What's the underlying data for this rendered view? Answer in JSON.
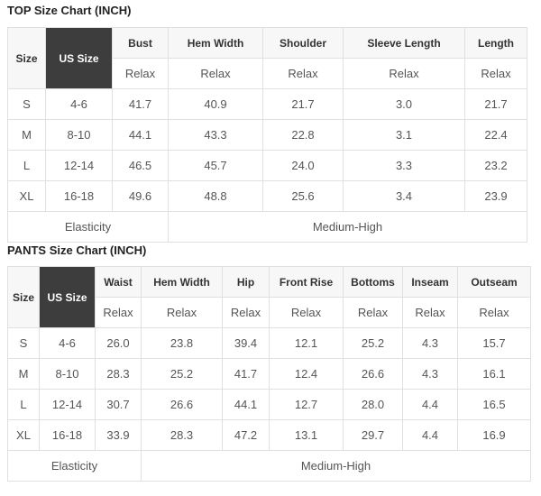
{
  "top": {
    "title": "TOP Size Chart (INCH)",
    "size_label": "Size",
    "us_size_label": "US Size",
    "columns": [
      "Bust",
      "Hem Width",
      "Shoulder",
      "Sleeve Length",
      "Length"
    ],
    "sub": "Relax",
    "rows": [
      [
        "S",
        "4-6",
        "41.7",
        "40.9",
        "21.7",
        "3.0",
        "21.7"
      ],
      [
        "M",
        "8-10",
        "44.1",
        "43.3",
        "22.8",
        "3.1",
        "22.4"
      ],
      [
        "L",
        "12-14",
        "46.5",
        "45.7",
        "24.0",
        "3.3",
        "23.2"
      ],
      [
        "XL",
        "16-18",
        "49.6",
        "48.8",
        "25.6",
        "3.4",
        "23.9"
      ]
    ],
    "elasticity_label": "Elasticity",
    "elasticity_value": "Medium-High"
  },
  "pants": {
    "title": "PANTS Size Chart (INCH)",
    "size_label": "Size",
    "us_size_label": "US Size",
    "columns": [
      "Waist",
      "Hem Width",
      "Hip",
      "Front Rise",
      "Bottoms",
      "Inseam",
      "Outseam"
    ],
    "sub": "Relax",
    "rows": [
      [
        "S",
        "4-6",
        "26.0",
        "23.8",
        "39.4",
        "12.1",
        "25.2",
        "4.3",
        "15.7"
      ],
      [
        "M",
        "8-10",
        "28.3",
        "25.2",
        "41.7",
        "12.4",
        "26.6",
        "4.3",
        "16.1"
      ],
      [
        "L",
        "12-14",
        "30.7",
        "26.6",
        "44.1",
        "12.7",
        "28.0",
        "4.4",
        "16.5"
      ],
      [
        "XL",
        "16-18",
        "33.9",
        "28.3",
        "47.2",
        "13.1",
        "29.7",
        "4.4",
        "16.9"
      ]
    ],
    "elasticity_label": "Elasticity",
    "elasticity_value": "Medium-High"
  }
}
